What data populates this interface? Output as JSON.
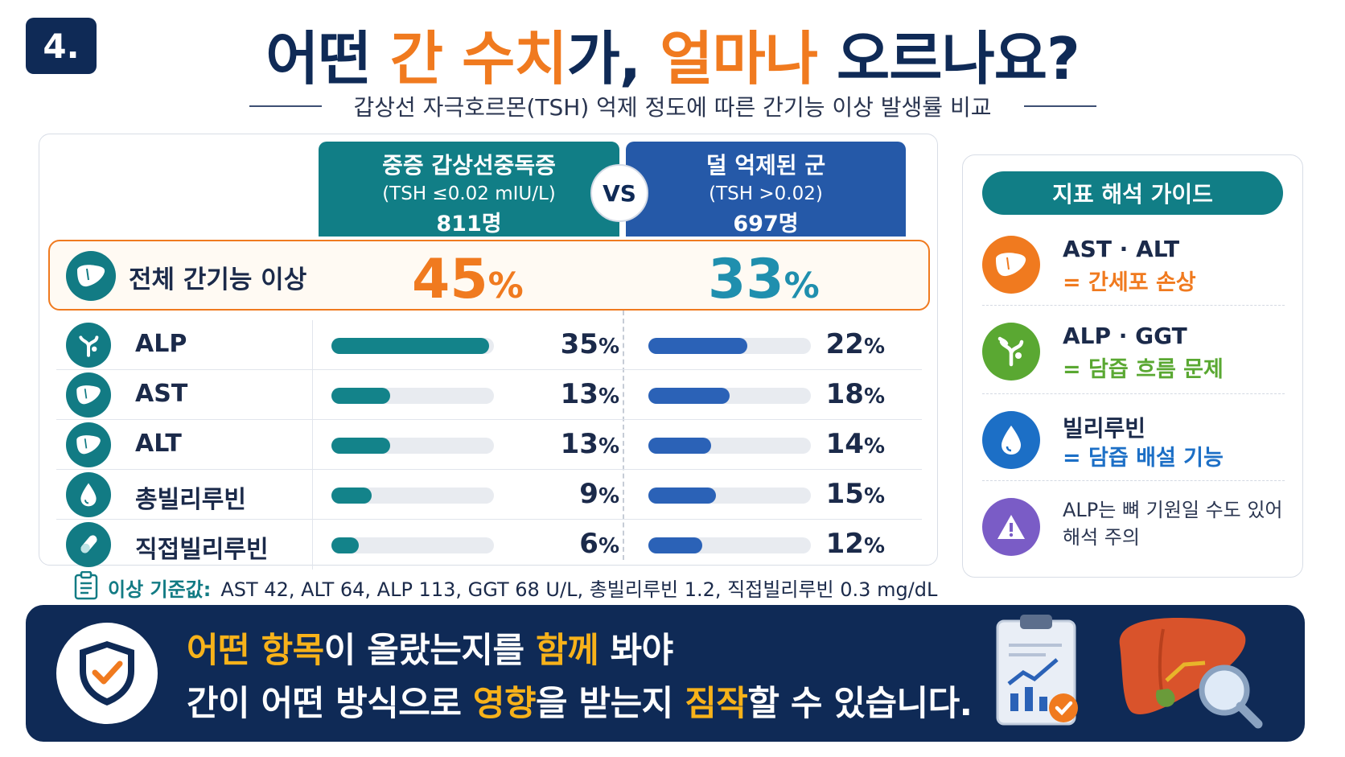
{
  "header": {
    "number": "4.",
    "title_parts": [
      {
        "text": "어떤 ",
        "hl": false
      },
      {
        "text": "간 수치",
        "hl": true
      },
      {
        "text": "가, ",
        "hl": false
      },
      {
        "text": "얼마나",
        "hl": true
      },
      {
        "text": " 오르나요?",
        "hl": false
      }
    ],
    "subtitle": "갑상선 자극호르몬(TSH) 억제 정도에 따른 간기능 이상 발생률 비교"
  },
  "columns": {
    "left": {
      "title": "중증 갑상선중독증",
      "criterion": "(TSH ≤0.02 mIU/L)",
      "count": "811명"
    },
    "vs": "VS",
    "right": {
      "title": "덜 억제된 군",
      "criterion": "(TSH >0.02)",
      "count": "697명"
    }
  },
  "total": {
    "label": "전체 간기능 이상",
    "left_value": "45",
    "right_value": "33",
    "unit": "%"
  },
  "rows": [
    {
      "label": "ALP",
      "icon": "bile-duct-icon",
      "left": 35,
      "right": 22
    },
    {
      "label": "AST",
      "icon": "liver-icon",
      "left": 13,
      "right": 18
    },
    {
      "label": "ALT",
      "icon": "liver-icon",
      "left": 13,
      "right": 14
    },
    {
      "label": "총빌리루빈",
      "icon": "droplet-icon",
      "left": 9,
      "right": 15
    },
    {
      "label": "직접빌리루빈",
      "icon": "test-tube-icon",
      "left": 6,
      "right": 12
    }
  ],
  "criteria": {
    "label": "이상 기준값:",
    "text": "AST 42, ALT 64, ALP 113, GGT 68 U/L, 총빌리루빈 1.2, 직접빌리루빈 0.3 mg/dL"
  },
  "guide": {
    "title": "지표 해석 가이드",
    "items": [
      {
        "title": "AST · ALT",
        "desc": "= 간세포 손상",
        "color": "#f07a1f",
        "icon": "liver-icon"
      },
      {
        "title": "ALP · GGT",
        "desc": "= 담즙 흐름 문제",
        "color": "#5aa832",
        "icon": "bile-duct-icon"
      },
      {
        "title": "빌리루빈",
        "desc": "= 담즙 배설 기능",
        "color": "#1c6fc6",
        "icon": "droplet-icon"
      }
    ],
    "note_line1": "ALP는 뼈 기원일 수도 있어",
    "note_line2": "해석 주의",
    "note_color": "#7a5cc6"
  },
  "banner": {
    "line1_parts": [
      {
        "text": "어떤 ",
        "hl": true
      },
      {
        "text": "항목",
        "hl": true
      },
      {
        "text": "이 올랐는지를 ",
        "hl": false
      },
      {
        "text": "함께",
        "hl": true
      },
      {
        "text": " 봐야",
        "hl": false
      }
    ],
    "line2_parts": [
      {
        "text": "간이 어떤 방식으로 ",
        "hl": false
      },
      {
        "text": "영향",
        "hl": true
      },
      {
        "text": "을 받는지 ",
        "hl": false
      },
      {
        "text": "짐작",
        "hl": true
      },
      {
        "text": "할 수 있습니다.",
        "hl": false
      }
    ]
  },
  "colors": {
    "navy": "#0f2a56",
    "orange": "#f07a1f",
    "teal": "#117e86",
    "blue": "#2559a8",
    "yellow": "#f7b21a"
  }
}
